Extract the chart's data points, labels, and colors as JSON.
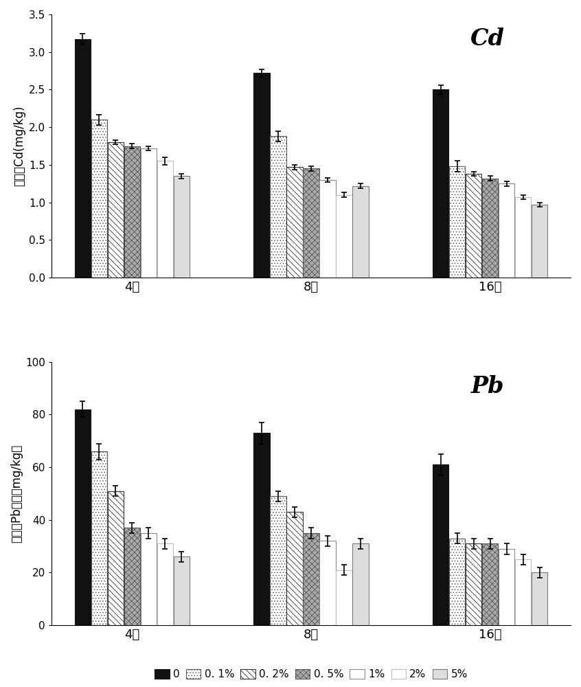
{
  "cd_data": {
    "weeks": [
      "4周",
      "8周",
      "16周"
    ],
    "values": [
      [
        3.17,
        2.1,
        1.8,
        1.75,
        1.72,
        1.55,
        1.35
      ],
      [
        2.72,
        1.88,
        1.47,
        1.45,
        1.3,
        1.1,
        1.22
      ],
      [
        2.5,
        1.48,
        1.38,
        1.32,
        1.25,
        1.07,
        0.97
      ]
    ],
    "errors": [
      [
        0.07,
        0.07,
        0.03,
        0.03,
        0.03,
        0.05,
        0.03
      ],
      [
        0.05,
        0.07,
        0.03,
        0.03,
        0.03,
        0.03,
        0.03
      ],
      [
        0.06,
        0.07,
        0.03,
        0.03,
        0.03,
        0.03,
        0.03
      ]
    ],
    "ylabel": "有效态Cd(mg/kg)",
    "title": "Cd",
    "ylim": [
      0.0,
      3.5
    ],
    "yticks": [
      0.0,
      0.5,
      1.0,
      1.5,
      2.0,
      2.5,
      3.0,
      3.5
    ]
  },
  "pb_data": {
    "weeks": [
      "4周",
      "8周",
      "16周"
    ],
    "values": [
      [
        82,
        66,
        51,
        37,
        35,
        31,
        26
      ],
      [
        73,
        49,
        43,
        35,
        32,
        21,
        31
      ],
      [
        61,
        33,
        31,
        31,
        29,
        25,
        20
      ]
    ],
    "errors": [
      [
        3,
        3,
        2,
        2,
        2,
        2,
        2
      ],
      [
        4,
        2,
        2,
        2,
        2,
        2,
        2
      ],
      [
        4,
        2,
        2,
        2,
        2,
        2,
        2
      ]
    ],
    "ylabel": "有效态Pb含量（mg/kg）",
    "title": "Pb",
    "ylim": [
      0,
      100
    ],
    "yticks": [
      0,
      20,
      40,
      60,
      80,
      100
    ]
  },
  "bar_styles": [
    {
      "color": "#111111",
      "hatch": "",
      "edgecolor": "#111111",
      "linewidth": 0.8
    },
    {
      "color": "#ffffff",
      "hatch": "....",
      "edgecolor": "#555555",
      "linewidth": 0.8
    },
    {
      "color": "#ffffff",
      "hatch": "\\\\\\\\",
      "edgecolor": "#333333",
      "linewidth": 0.8
    },
    {
      "color": "#aaaaaa",
      "hatch": "xxxx",
      "edgecolor": "#555555",
      "linewidth": 0.8
    },
    {
      "color": "#ffffff",
      "hatch": "",
      "edgecolor": "#888888",
      "linewidth": 0.8
    },
    {
      "color": "#ffffff",
      "hatch": "",
      "edgecolor": "#bbbbbb",
      "linewidth": 0.8
    },
    {
      "color": "#dddddd",
      "hatch": "====",
      "edgecolor": "#777777",
      "linewidth": 0.8
    }
  ],
  "legend_labels": [
    "0",
    "0. 1%",
    "0. 2%",
    "0. 5%",
    "1%",
    "2%",
    "5%"
  ],
  "bar_width": 0.092,
  "group_positions": [
    0,
    1,
    2
  ]
}
